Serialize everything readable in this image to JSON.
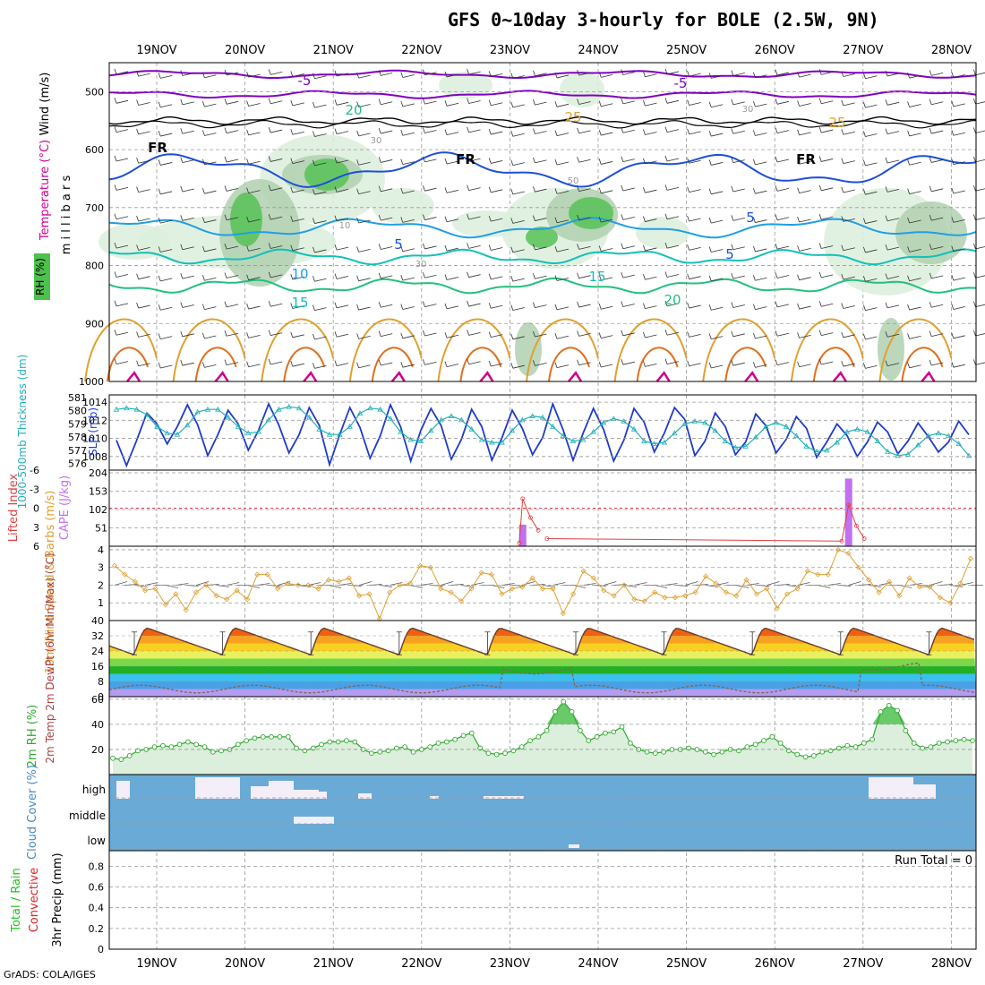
{
  "title": "GFS 0~10day 3-hourly for BOLE (2.5W, 9N)",
  "credit": "GrADS: COLA/IGES",
  "colors": {
    "freezing": "#000000",
    "temp_cold": "#8000c0",
    "temp_5": "#1e4fd8",
    "temp_10": "#1e9fe6",
    "temp_15": "#12c0b8",
    "temp_20": "#22c080",
    "temp_25": "#e0a030",
    "temp_30": "#e07020",
    "temp_35": "#d00090",
    "rh_light": "#dcefdc",
    "rh_mid": "#b0d0b0",
    "rh_dark": "#56c256",
    "slp": "#1e3cc8",
    "thickness": "#20b0b8",
    "cape": "#c070f0",
    "lifted": "#e04040",
    "wind10m": "#e0a030",
    "rh2m": "#2ea82e",
    "cloud_bg": "#6aaad6",
    "cloud_fill": "#f4eef8",
    "precip_total": "#22c022",
    "precip_conv": "#e02020"
  },
  "chart_data": [
    {
      "panel": "upper_air",
      "type": "contour",
      "ylabel": "m i l l i b a r s",
      "legend_labels": [
        "Wind (m/s)",
        "Temperature (°C)",
        "RH (%)"
      ],
      "x_labels": [
        "19NOV",
        "20NOV",
        "21NOV",
        "22NOV",
        "23NOV",
        "24NOV",
        "25NOV",
        "26NOV",
        "27NOV",
        "28NOV"
      ],
      "y_ticks": [
        500,
        600,
        700,
        800,
        900,
        1000
      ],
      "ylim": [
        450,
        1000
      ],
      "contour_labels": [
        "-5",
        "-5",
        "FR",
        "FR",
        "FR",
        "5",
        "5",
        "5",
        "10",
        "15",
        "15",
        "20",
        "20",
        "25",
        "25",
        "30",
        "30",
        "10",
        "50",
        "30"
      ],
      "freezing_level_mb": 550
    },
    {
      "panel": "slp_thickness",
      "type": "line",
      "ylabel_left": "1000-500mb Thickness (dm)",
      "ylabel_right": "SLP (mb)",
      "left_ticks": [
        576,
        577,
        578,
        579,
        580,
        581
      ],
      "right_ticks": [
        1008,
        1010,
        1012,
        1014
      ],
      "left_range": [
        575.5,
        581.2
      ],
      "right_range": [
        1006.5,
        1014.8
      ],
      "series": [
        {
          "name": "SLP",
          "axis": "right",
          "values": [
            1009.8,
            1007,
            1009.8,
            1012.8,
            1011.6,
            1009.4,
            1011.3,
            1013.7,
            1011.5,
            1008.1,
            1010.4,
            1013.1,
            1011.6,
            1008.7,
            1010.9,
            1013.8,
            1011.5,
            1008.4,
            1010.4,
            1013.4,
            1011.4,
            1007.1,
            1010.4,
            1013.4,
            1011.2,
            1007.8,
            1010.3,
            1013.7,
            1011.3,
            1007.5,
            1010.9,
            1013.3,
            1011.4,
            1007.7,
            1009.9,
            1013.2,
            1011.3,
            1007.6,
            1010.1,
            1013.1,
            1011.1,
            1008.2,
            1010.1,
            1013.8,
            1011,
            1007.6,
            1010.6,
            1013.3,
            1011,
            1007.5,
            1009.8,
            1013.3,
            1011.8,
            1008.5,
            1010.6,
            1013.4,
            1012.1,
            1008.1,
            1009.7,
            1012.8,
            1011.3,
            1008.2,
            1009.6,
            1012.7,
            1011.4,
            1008.4,
            1009.9,
            1012.4,
            1011.1,
            1007.9,
            1009.6,
            1011.6,
            1010.3,
            1008,
            1009.6,
            1011.8,
            1010.7,
            1008.3,
            1009.7,
            1011.7,
            1010.2,
            1008.5,
            1009.6,
            1011.9,
            1010.4
          ]
        },
        {
          "name": "Thickness",
          "axis": "left",
          "values": [
            580.1,
            580.2,
            580.1,
            579.7,
            578.8,
            578.3,
            578.2,
            578.9,
            579.9,
            580.1,
            580.1,
            579.5,
            578.8,
            578.3,
            578.4,
            579.3,
            580.1,
            580.3,
            580.2,
            579.5,
            578.6,
            578.2,
            578.2,
            578.8,
            579.8,
            580.2,
            580.1,
            579.4,
            578.4,
            577.8,
            577.7,
            578.5,
            579.3,
            579.6,
            579.3,
            578.6,
            577.8,
            577.6,
            577.6,
            578.5,
            579.3,
            579.6,
            579.5,
            578.8,
            578.1,
            577.7,
            577.8,
            578.4,
            579.1,
            579.4,
            579.2,
            578.6,
            577.7,
            577.5,
            577.6,
            578.3,
            579.0,
            579.2,
            579.1,
            578.5,
            577.7,
            577.2,
            577.3,
            578.0,
            578.8,
            579.1,
            578.8,
            578.1,
            577.3,
            576.9,
            577.0,
            577.6,
            578.4,
            578.6,
            578.4,
            577.7,
            576.9,
            576.6,
            576.7,
            577.4,
            578.1,
            578.3,
            578.1,
            577.5,
            576.6
          ]
        }
      ]
    },
    {
      "panel": "cape_lifted",
      "type": "bar+line",
      "ylabel_left": "Lifted Index",
      "ylabel_right": "CAPE (J/kg)",
      "left_ticks": [
        -6,
        -3,
        0,
        3,
        6
      ],
      "left_tick_labels": [
        "-6",
        "-3",
        "0",
        "3",
        "6"
      ],
      "right_ticks": [
        51,
        102,
        153,
        204
      ],
      "cape": [
        {
          "x": 47.7,
          "value": 60
        },
        {
          "x": 85.3,
          "value": 188
        }
      ],
      "lifted": [
        {
          "x": 47.3,
          "value": 5.5
        },
        {
          "x": 47.7,
          "value": -1.5
        },
        {
          "x": 48.6,
          "value": 1.5
        },
        {
          "x": 49.5,
          "value": 3.5
        },
        {
          "x": 50.5,
          "value": 4.8
        },
        {
          "x": 84.5,
          "value": 5.2
        },
        {
          "x": 85.3,
          "value": -0.5
        },
        {
          "x": 86.2,
          "value": 2.8
        },
        {
          "x": 87.1,
          "value": 4.8
        }
      ]
    },
    {
      "panel": "wind10m",
      "type": "line",
      "ylabel": "10m Wind Speed & Barbs (m/s)",
      "y_ticks": [
        1,
        2,
        3,
        4
      ],
      "ylim": [
        0,
        4.2
      ],
      "series": [
        {
          "name": "Speed",
          "values": [
            3.1,
            2.6,
            2.2,
            1.7,
            1.8,
            0.9,
            1.5,
            0.6,
            1.6,
            2.0,
            1.4,
            1.2,
            1.7,
            1.2,
            2.6,
            2.6,
            1.8,
            2.1,
            2.0,
            2.0,
            1.8,
            2.3,
            2.2,
            2.4,
            1.4,
            1.5,
            0.1,
            1.6,
            2.0,
            2.1,
            3.1,
            3.0,
            1.8,
            1.6,
            1.1,
            1.8,
            2.7,
            2.6,
            1.5,
            1.8,
            1.9,
            2.4,
            1.8,
            1.8,
            0.4,
            1.5,
            2.8,
            2.4,
            1.7,
            1.4,
            2.0,
            1.2,
            1.1,
            1.6,
            1.3,
            1.3,
            1.4,
            1.6,
            2.5,
            2.1,
            1.6,
            1.4,
            2.3,
            1.5,
            1.8,
            0.7,
            1.5,
            1.8,
            2.8,
            2.6,
            2.6,
            4.0,
            3.8,
            3.0,
            2.3,
            1.6,
            2.2,
            1.4,
            2.4,
            1.9,
            1.9,
            1.3,
            1.0,
            2.1,
            3.5
          ]
        }
      ]
    },
    {
      "panel": "temp2m",
      "type": "area",
      "ylabel": "2m Temp 2m DewPt (6hr Min/Max) (°C)",
      "y_ticks": [
        0,
        8,
        16,
        24,
        32,
        40
      ],
      "y_tick_labels": [
        "0",
        "8",
        "16",
        "24",
        "32",
        "40"
      ],
      "ylim": [
        0,
        40
      ],
      "daily_max": 36,
      "daily_min": 22,
      "dewpoint_base": 4
    },
    {
      "panel": "rh2m",
      "type": "area",
      "ylabel": "2m RH (%)",
      "y_ticks": [
        20,
        40,
        60
      ],
      "ylim": [
        0,
        62
      ],
      "series": [
        {
          "name": "RH",
          "values": [
            13,
            12,
            15,
            19,
            20,
            22,
            23,
            22,
            24,
            26,
            24,
            22,
            18,
            19,
            20,
            24,
            27,
            29,
            30,
            30,
            30,
            30,
            21,
            19,
            21,
            24,
            26,
            26,
            27,
            26,
            20,
            17,
            18,
            19,
            21,
            22,
            18,
            20,
            22,
            25,
            26,
            28,
            31,
            33,
            21,
            17,
            16,
            17,
            19,
            22,
            27,
            30,
            35,
            50,
            58,
            50,
            35,
            27,
            30,
            33,
            34,
            38,
            25,
            20,
            18,
            17,
            18,
            20,
            20,
            21,
            20,
            18,
            16,
            18,
            20,
            19,
            22,
            24,
            27,
            30,
            25,
            19,
            16,
            14,
            15,
            18,
            19,
            21,
            23,
            22,
            25,
            28,
            50,
            55,
            51,
            35,
            25,
            21,
            22,
            25,
            26,
            27,
            28,
            27
          ]
        }
      ]
    },
    {
      "panel": "cloud",
      "type": "bar",
      "ylabel": "Cloud Cover (%)",
      "levels": [
        "high",
        "middle",
        "low"
      ]
    },
    {
      "panel": "precip",
      "type": "bar",
      "ylabel": "3hr Precip (mm)",
      "legend_labels": [
        "Total / Rain",
        "Convective"
      ],
      "y_ticks": [
        0,
        0.2,
        0.4,
        0.6,
        0.8
      ],
      "y_tick_labels": [
        "0",
        "0.2",
        "0.4",
        "0.6",
        "0.8"
      ],
      "ylim": [
        0,
        0.95
      ],
      "run_total": "Run Total = 0"
    }
  ]
}
